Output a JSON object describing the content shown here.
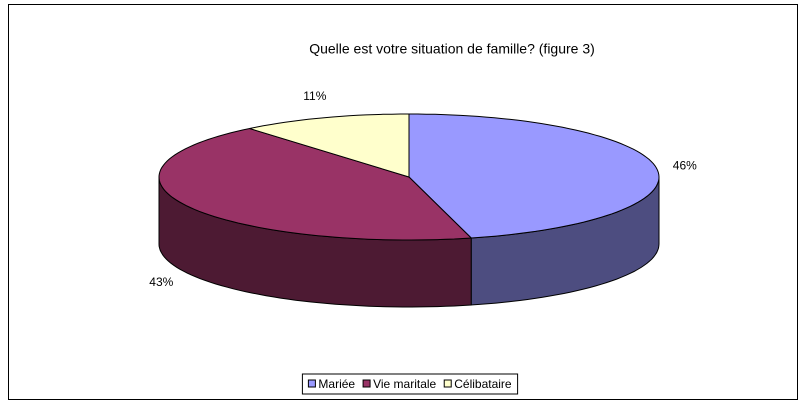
{
  "chart_data": {
    "type": "pie3d",
    "title": "Quelle est votre situation de famille? (figure  3)",
    "categories": [
      "Mariée",
      "Vie maritale",
      "Célibataire"
    ],
    "values": [
      46,
      43,
      11
    ],
    "value_labels": [
      "46%",
      "43%",
      "11%"
    ],
    "colors": [
      "#9999ff",
      "#993366",
      "#ffffcc"
    ],
    "legend": "bottom"
  }
}
